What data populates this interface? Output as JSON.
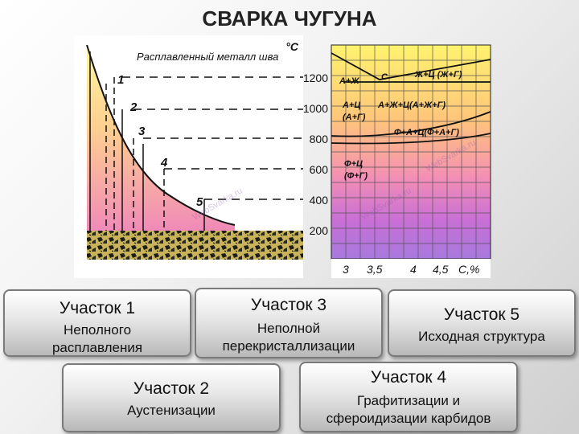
{
  "title": "СВАРКА ЧУГУНА",
  "diagram": {
    "melt_label": "Расплавленный металл шва",
    "unit": "°C",
    "zone_numbers": [
      "1",
      "2",
      "3",
      "4",
      "5"
    ],
    "temperature_ticks": [
      "1200",
      "1000",
      "800",
      "600",
      "400",
      "200"
    ],
    "carbon_ticks": [
      "3",
      "3,5",
      "4",
      "4,5"
    ],
    "carbon_axis_label": "C,%",
    "phase_labels": {
      "a_zh": "А+Ж",
      "c": "С",
      "zh_c": "Ж+Ц (Ж+Г)",
      "a_c": "А+Ц",
      "a_g": "(А+Г)",
      "a_zh_c": "А+Ж+Ц(А+Ж+Г)",
      "f_a_c": "Ф+А+Ц(Ф+А+Г)",
      "f_c": "Ф+Ц",
      "f_g": "(Ф+Г)"
    },
    "watermark": "WebSvarka.ru"
  },
  "boxes": [
    {
      "heading": "Участок 1",
      "description": [
        "Неполного",
        "расплавления"
      ]
    },
    {
      "heading": "Участок 3",
      "description": [
        "Неполной",
        "перекристаллизации"
      ]
    },
    {
      "heading": "Участок 5",
      "description": [
        "Исходная структура"
      ]
    },
    {
      "heading": "Участок 2",
      "description": [
        "Аустенизации"
      ]
    },
    {
      "heading": "Участок 4",
      "description": [
        "Графитизации и",
        "сфероидизации карбидов"
      ]
    }
  ]
}
